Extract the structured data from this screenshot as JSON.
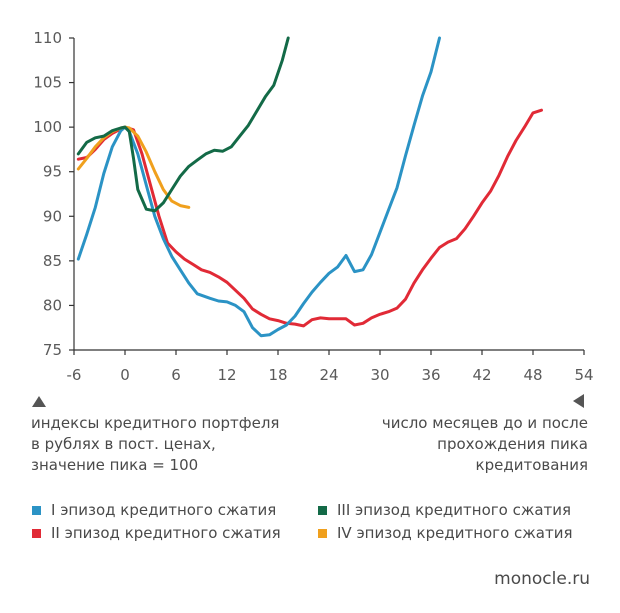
{
  "chart_data": {
    "type": "line",
    "title": "",
    "xlim": [
      -6,
      54
    ],
    "ylim": [
      75,
      110
    ],
    "x_ticks": [
      "-6",
      "0",
      "6",
      "12",
      "18",
      "24",
      "30",
      "36",
      "42",
      "48",
      "54"
    ],
    "y_ticks": [
      "75",
      "80",
      "85",
      "90",
      "95",
      "100",
      "105",
      "110"
    ],
    "grid": false,
    "series": [
      {
        "name": "I эпизод кредитного сжатия",
        "color": "#2b93c5",
        "points": [
          [
            -5.5,
            85.2
          ],
          [
            -4.5,
            88
          ],
          [
            -3.5,
            91
          ],
          [
            -2.5,
            94.8
          ],
          [
            -1.5,
            97.8
          ],
          [
            -0.5,
            99.6
          ],
          [
            0,
            100
          ],
          [
            0.5,
            99.5
          ],
          [
            1.5,
            97
          ],
          [
            2.5,
            93.5
          ],
          [
            3.5,
            90
          ],
          [
            4.5,
            87.5
          ],
          [
            5.5,
            85.5
          ],
          [
            6.5,
            84
          ],
          [
            7.5,
            82.5
          ],
          [
            8.5,
            81.3
          ],
          [
            10,
            80.8
          ],
          [
            11,
            80.5
          ],
          [
            12,
            80.4
          ],
          [
            13,
            80
          ],
          [
            14,
            79.3
          ],
          [
            15,
            77.5
          ],
          [
            16,
            76.6
          ],
          [
            17,
            76.7
          ],
          [
            18,
            77.3
          ],
          [
            19,
            77.8
          ],
          [
            20,
            78.8
          ],
          [
            21,
            80.2
          ],
          [
            22,
            81.5
          ],
          [
            23,
            82.6
          ],
          [
            24,
            83.6
          ],
          [
            25,
            84.3
          ],
          [
            26,
            85.6
          ],
          [
            27,
            83.8
          ],
          [
            28,
            84
          ],
          [
            29,
            85.7
          ],
          [
            30,
            88.2
          ],
          [
            31,
            90.7
          ],
          [
            32,
            93.2
          ],
          [
            33,
            96.8
          ],
          [
            34,
            100.2
          ],
          [
            35,
            103.5
          ],
          [
            36,
            106.2
          ],
          [
            37,
            110
          ]
        ]
      },
      {
        "name": "II эпизод кредитного сжатия",
        "color": "#e12a36",
        "points": [
          [
            -5.5,
            96.4
          ],
          [
            -4.5,
            96.6
          ],
          [
            -3.5,
            97.5
          ],
          [
            -2.5,
            98.6
          ],
          [
            -1.5,
            99.3
          ],
          [
            -0.5,
            99.8
          ],
          [
            0,
            100
          ],
          [
            1,
            99.7
          ],
          [
            2,
            97
          ],
          [
            3,
            93.5
          ],
          [
            4,
            90
          ],
          [
            5,
            87
          ],
          [
            6,
            86
          ],
          [
            7,
            85.2
          ],
          [
            8,
            84.6
          ],
          [
            9,
            84
          ],
          [
            10,
            83.7
          ],
          [
            11,
            83.2
          ],
          [
            12,
            82.6
          ],
          [
            13,
            81.7
          ],
          [
            14,
            80.8
          ],
          [
            15,
            79.6
          ],
          [
            16,
            79
          ],
          [
            17,
            78.5
          ],
          [
            18,
            78.3
          ],
          [
            19,
            78
          ],
          [
            20,
            77.9
          ],
          [
            21,
            77.7
          ],
          [
            22,
            78.4
          ],
          [
            23,
            78.6
          ],
          [
            24,
            78.5
          ],
          [
            25,
            78.5
          ],
          [
            26,
            78.5
          ],
          [
            27,
            77.8
          ],
          [
            28,
            78
          ],
          [
            29,
            78.6
          ],
          [
            30,
            79
          ],
          [
            31,
            79.3
          ],
          [
            32,
            79.7
          ],
          [
            33,
            80.7
          ],
          [
            34,
            82.5
          ],
          [
            35,
            84
          ],
          [
            36,
            85.3
          ],
          [
            37,
            86.5
          ],
          [
            38,
            87.1
          ],
          [
            39,
            87.5
          ],
          [
            40,
            88.6
          ],
          [
            41,
            90
          ],
          [
            42,
            91.5
          ],
          [
            43,
            92.8
          ],
          [
            44,
            94.6
          ],
          [
            45,
            96.7
          ],
          [
            46,
            98.5
          ],
          [
            47,
            100
          ],
          [
            48,
            101.6
          ],
          [
            49,
            101.9
          ]
        ]
      },
      {
        "name": "III эпизод кредитного сжатия",
        "color": "#136a47",
        "points": [
          [
            -5.5,
            97
          ],
          [
            -4.5,
            98.3
          ],
          [
            -3.5,
            98.8
          ],
          [
            -2.5,
            99
          ],
          [
            -1.5,
            99.6
          ],
          [
            -0.5,
            99.9
          ],
          [
            0,
            100
          ],
          [
            0.5,
            99.5
          ],
          [
            1,
            96.5
          ],
          [
            1.5,
            93
          ],
          [
            2.5,
            90.8
          ],
          [
            3.5,
            90.6
          ],
          [
            4.5,
            91.5
          ],
          [
            5.5,
            93
          ],
          [
            6.5,
            94.5
          ],
          [
            7.5,
            95.6
          ],
          [
            8.5,
            96.3
          ],
          [
            9.5,
            97
          ],
          [
            10.5,
            97.4
          ],
          [
            11.5,
            97.3
          ],
          [
            12.5,
            97.8
          ],
          [
            13.5,
            99
          ],
          [
            14.5,
            100.2
          ],
          [
            15.5,
            101.8
          ],
          [
            16.5,
            103.4
          ],
          [
            17.5,
            104.7
          ],
          [
            18.5,
            107.5
          ],
          [
            19.2,
            110
          ]
        ]
      },
      {
        "name": "IV эпизод кредитного сжатия",
        "color": "#f0a01d",
        "points": [
          [
            -5.5,
            95.3
          ],
          [
            -4.5,
            96.5
          ],
          [
            -3.5,
            97.8
          ],
          [
            -2.5,
            98.8
          ],
          [
            -1.5,
            99.5
          ],
          [
            -0.5,
            99.9
          ],
          [
            0,
            100
          ],
          [
            0.5,
            99.9
          ],
          [
            1.5,
            99
          ],
          [
            2.5,
            97.2
          ],
          [
            3.5,
            95
          ],
          [
            4.5,
            93
          ],
          [
            5.5,
            91.7
          ],
          [
            6.5,
            91.2
          ],
          [
            7.5,
            91
          ]
        ]
      }
    ]
  },
  "notes": {
    "left": [
      "индексы кредитного портфеля",
      "в рублях в пост. ценах,",
      "значение пика = 100"
    ],
    "right": [
      "число месяцев до и после",
      "прохождения пика",
      "кредитования"
    ]
  },
  "legend": [
    {
      "label": "I эпизод кредитного сжатия",
      "color": "#2b93c5"
    },
    {
      "label": "III эпизод кредитного сжатия",
      "color": "#136a47"
    },
    {
      "label": "II эпизод кредитного сжатия",
      "color": "#e12a36"
    },
    {
      "label": "IV эпизод кредитного сжатия",
      "color": "#f0a01d"
    }
  ],
  "brand": "monocle.ru"
}
